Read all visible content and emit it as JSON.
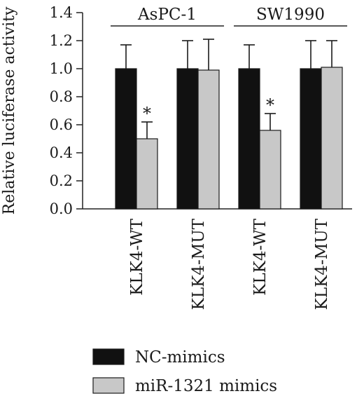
{
  "chart_data": {
    "type": "bar",
    "ylabel": "Relative luciferase activity",
    "ylim": [
      0,
      1.4
    ],
    "yticks": [
      "0.0",
      "0.2",
      "0.4",
      "0.6",
      "0.8",
      "1.0",
      "1.2",
      "1.4"
    ],
    "categories": [
      "KLK4-WT",
      "KLK4-MUT",
      "KLK4-WT",
      "KLK4-MUT"
    ],
    "groups": [
      {
        "label": "AsPC-1",
        "categories": [
          0,
          1
        ]
      },
      {
        "label": "SW1990",
        "categories": [
          2,
          3
        ]
      }
    ],
    "series": [
      {
        "name": "NC-mimics",
        "color": "#111111",
        "values": [
          1.0,
          1.0,
          1.0,
          1.0
        ],
        "errors": [
          0.17,
          0.2,
          0.17,
          0.2
        ]
      },
      {
        "name": "miR-1321 mimics",
        "color": "#c8c8c8",
        "values": [
          0.5,
          0.99,
          0.56,
          1.01
        ],
        "errors": [
          0.12,
          0.22,
          0.12,
          0.19
        ]
      }
    ],
    "annotations": [
      {
        "series": 1,
        "category": 0,
        "text": "*"
      },
      {
        "series": 1,
        "category": 2,
        "text": "*"
      }
    ],
    "legend": "bottom",
    "grid": false
  }
}
